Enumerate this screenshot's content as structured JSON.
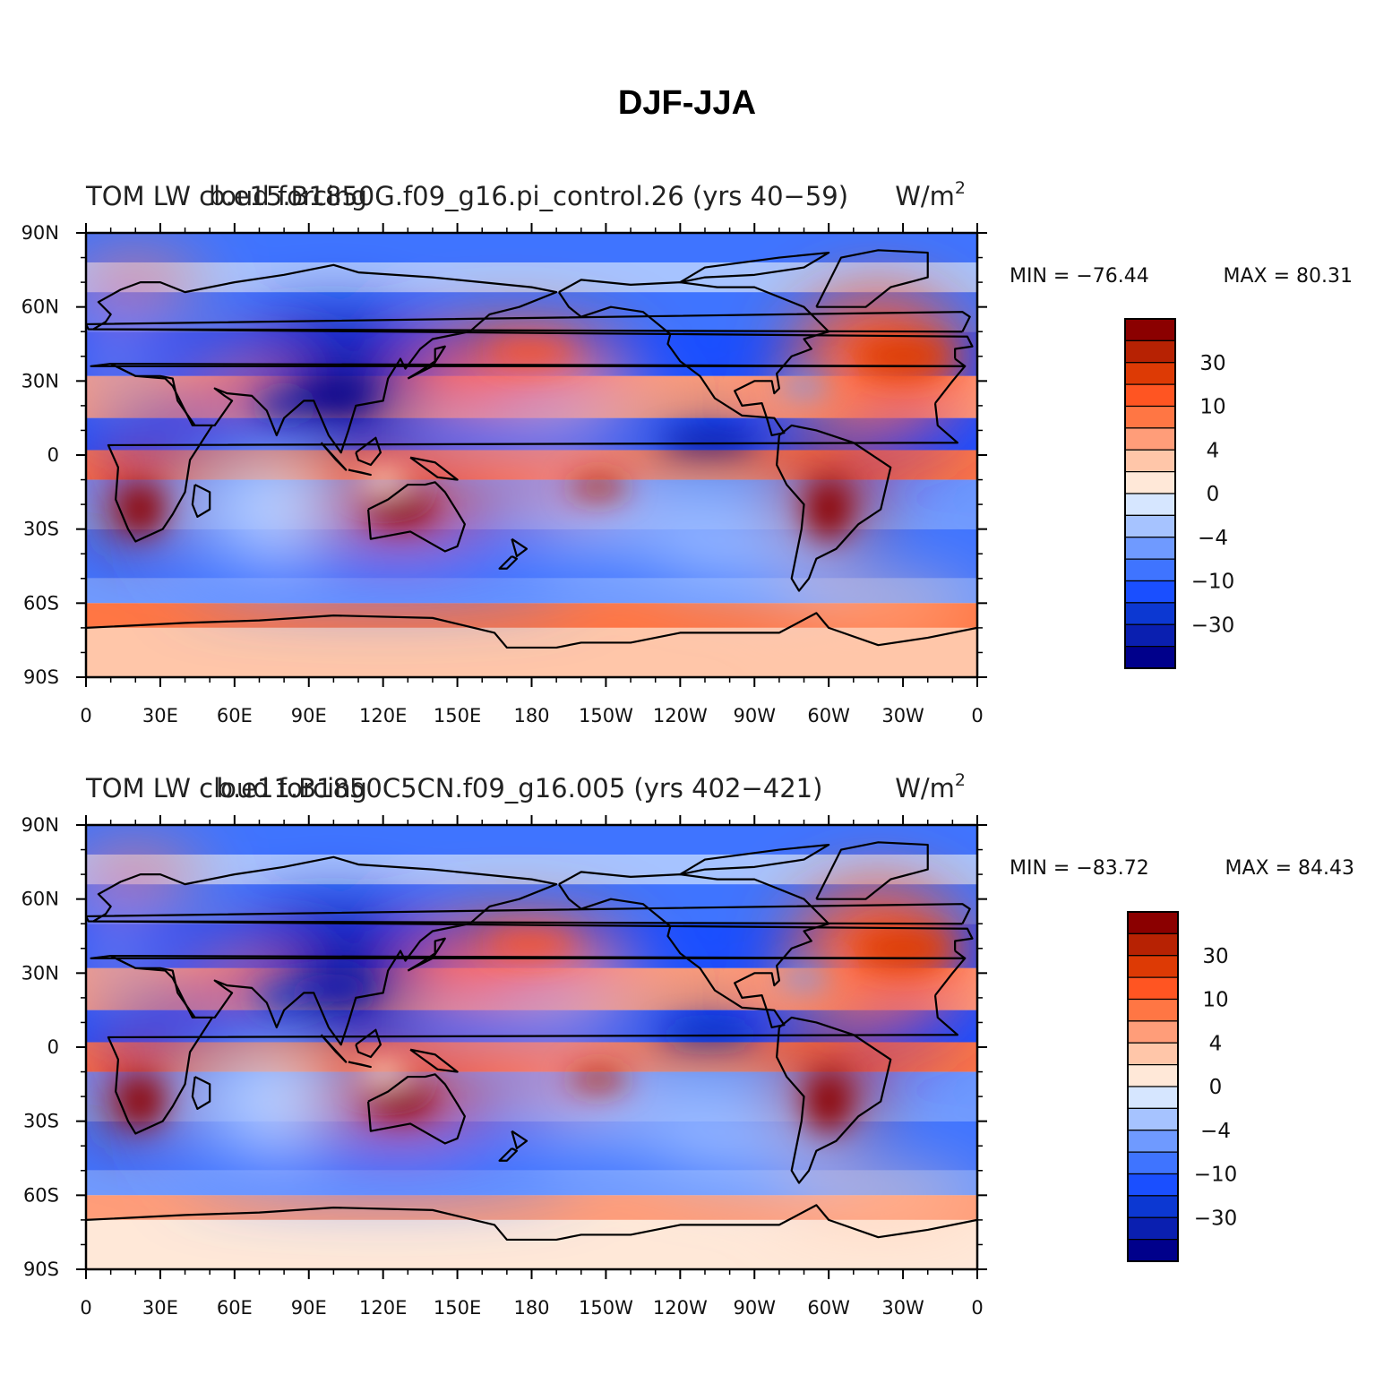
{
  "chart_data": {
    "type": "heatmap",
    "title": "DJF-JJA",
    "colors": [
      "#00008b",
      "#0a1fb0",
      "#0c38d2",
      "#1a4fff",
      "#3f74ff",
      "#6f9aff",
      "#a6c3ff",
      "#d6e6ff",
      "#ffe8d8",
      "#ffc6a9",
      "#ff9d79",
      "#ff7644",
      "#ff5522",
      "#dd3a05",
      "#b72203",
      "#8b0000"
    ],
    "colorbar_labels": [
      "30",
      "10",
      "4",
      "0",
      "−4",
      "−10",
      "−30"
    ],
    "x_ticks": [
      "0",
      "30E",
      "60E",
      "90E",
      "120E",
      "150E",
      "180",
      "150W",
      "120W",
      "90W",
      "60W",
      "30W",
      "0"
    ],
    "y_ticks": [
      "90N",
      "60N",
      "30N",
      "0",
      "30S",
      "60S",
      "90S"
    ],
    "panels": [
      {
        "left_title": "TOM LW cloud forcing",
        "center_title": "b.e15.B1850G.f09_g16.pi_control.26 (yrs 40−59)",
        "units_base": "W/m",
        "units_exp": "2",
        "min_label": "MIN = −76.44",
        "max_label": "MAX =  80.31",
        "min": -76.44,
        "max": 80.31
      },
      {
        "left_title": "TOM LW cloud forcing",
        "center_title": "b.e11.B1850C5CN.f09_g16.005 (yrs 402−421)",
        "units_base": "W/m",
        "units_exp": "2",
        "min_label": "MIN = −83.72",
        "max_label": "MAX =  84.43",
        "min": -83.72,
        "max": 84.43
      }
    ]
  }
}
